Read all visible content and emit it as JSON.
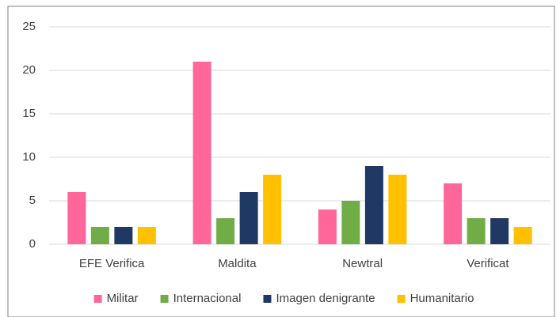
{
  "chart_data": {
    "type": "bar",
    "categories": [
      "EFE Verifica",
      "Maldita",
      "Newtral",
      "Verificat"
    ],
    "series": [
      {
        "name": "Militar",
        "color": "#ff6699",
        "values": [
          6,
          21,
          4,
          7
        ]
      },
      {
        "name": "Internacional",
        "color": "#70ad47",
        "values": [
          2,
          3,
          5,
          3
        ]
      },
      {
        "name": "Imagen denigrante",
        "color": "#1f3864",
        "values": [
          2,
          6,
          9,
          3
        ]
      },
      {
        "name": "Humanitario",
        "color": "#ffc000",
        "values": [
          2,
          8,
          8,
          2
        ]
      }
    ],
    "ylim": [
      0,
      25
    ],
    "yticks": [
      0,
      5,
      10,
      15,
      20,
      25
    ],
    "grid": true,
    "legend": "bottom"
  }
}
